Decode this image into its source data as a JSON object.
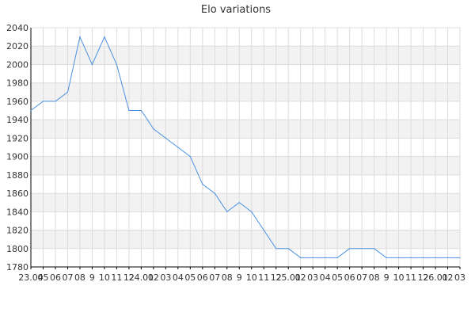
{
  "chart_data": {
    "type": "line",
    "title": "Elo variations",
    "xlabel": "",
    "ylabel": "",
    "ylim": [
      1780,
      2040
    ],
    "yticks": [
      1780,
      1800,
      1820,
      1840,
      1860,
      1880,
      1900,
      1920,
      1940,
      1960,
      1980,
      2000,
      2020,
      2040
    ],
    "categories": [
      "23.04",
      "05",
      "06",
      "07",
      "08",
      "9",
      "10",
      "11",
      "12",
      "24.01",
      "02",
      "03",
      "04",
      "05",
      "06",
      "07",
      "08",
      "9",
      "10",
      "11",
      "12",
      "25.01",
      "02",
      "03",
      "04",
      "05",
      "06",
      "07",
      "08",
      "9",
      "10",
      "11",
      "12",
      "26.01",
      "02",
      "03"
    ],
    "series": [
      {
        "values": [
          1950,
          1960,
          1960,
          1970,
          2030,
          2000,
          2030,
          2000,
          1950,
          1950,
          1930,
          1920,
          1910,
          1900,
          1870,
          1860,
          1840,
          1850,
          1840,
          1820,
          1800,
          1800,
          1790,
          1790,
          1790,
          1790,
          1800,
          1800,
          1800,
          1790,
          1790,
          1790,
          1790,
          1790,
          1790,
          1790
        ]
      }
    ],
    "grid": true,
    "legend": "none",
    "colors": {
      "line": "#4a90e2",
      "grid": "#dcdcdc",
      "band": "#f2f2f2",
      "axis": "#000000"
    }
  }
}
